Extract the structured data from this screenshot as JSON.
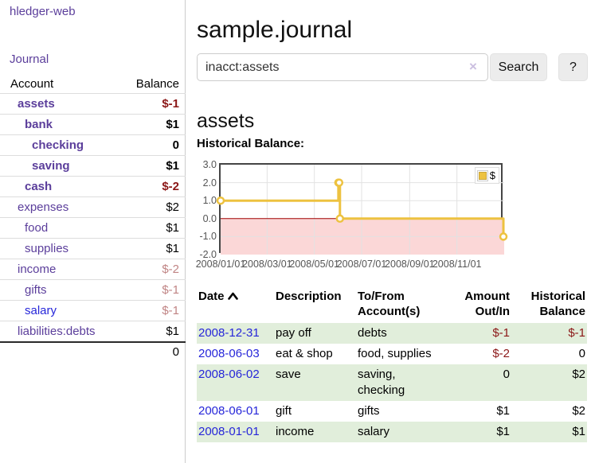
{
  "app": {
    "brand": "hledger-web",
    "nav_journal": "Journal"
  },
  "theme": {
    "link_purple": "#5b3e9b",
    "link_blue": "#2626d9",
    "negative_strong": "#8b1717",
    "negative_muted": "#c08484",
    "row_green": "#e1eedb",
    "chart_line": "#EDC240",
    "chart_negative_fill": "#fbd7d7",
    "chart_zero_line": "#a00000"
  },
  "sidebar": {
    "headers": {
      "account": "Account",
      "balance": "Balance"
    },
    "accounts": [
      {
        "name": "assets",
        "level": 1,
        "balance": "$-1",
        "in_current_account": true,
        "negative": "strong"
      },
      {
        "name": "bank",
        "level": 2,
        "balance": "$1",
        "in_current_account": true,
        "negative": null
      },
      {
        "name": "checking",
        "level": 3,
        "balance": "0",
        "in_current_account": true,
        "negative": null
      },
      {
        "name": "saving",
        "level": 3,
        "balance": "$1",
        "in_current_account": true,
        "negative": null
      },
      {
        "name": "cash",
        "level": 2,
        "balance": "$-2",
        "in_current_account": true,
        "negative": "strong"
      },
      {
        "name": "expenses",
        "level": 1,
        "balance": "$2",
        "in_current_account": false,
        "negative": null
      },
      {
        "name": "food",
        "level": 2,
        "balance": "$1",
        "in_current_account": false,
        "negative": null
      },
      {
        "name": "supplies",
        "level": 2,
        "balance": "$1",
        "in_current_account": false,
        "negative": null
      },
      {
        "name": "income",
        "level": 1,
        "balance": "$-2",
        "in_current_account": false,
        "negative": "muted"
      },
      {
        "name": "gifts",
        "level": 2,
        "balance": "$-1",
        "in_current_account": false,
        "negative": "muted"
      },
      {
        "name": "salary",
        "level": 2,
        "balance": "$-1",
        "in_current_account": false,
        "negative": "muted",
        "link_color": "blue"
      },
      {
        "name": "liabilities:debts",
        "level": 1,
        "balance": "$1",
        "in_current_account": false,
        "negative": null
      }
    ],
    "total": "0"
  },
  "main": {
    "title": "sample.journal",
    "search": {
      "value": "inacct:assets",
      "clear_icon": "×",
      "button_label": "Search",
      "help_label": "?"
    },
    "account_heading": "assets"
  },
  "chart_data": {
    "type": "line",
    "title": "Historical Balance:",
    "step": true,
    "series": [
      {
        "name": "$",
        "color": "#EDC240",
        "points": [
          {
            "date": "2008-01-01",
            "value": 1
          },
          {
            "date": "2008-06-01",
            "value": 2
          },
          {
            "date": "2008-06-02",
            "value": 2
          },
          {
            "date": "2008-06-03",
            "value": 0
          },
          {
            "date": "2008-12-31",
            "value": -1
          }
        ]
      }
    ],
    "xlim": [
      "2008-01-01",
      "2009-01-01"
    ],
    "ylim": [
      -2,
      3
    ],
    "x_ticks": [
      "2008/01/01",
      "2008/03/01",
      "2008/05/01",
      "2008/07/01",
      "2008/09/01",
      "2008/11/01"
    ],
    "y_ticks": [
      "3.0",
      "2.0",
      "1.0",
      "0.0",
      "-1.0",
      "-2.0"
    ],
    "grid": true,
    "legend_position": "top-right",
    "negative_fill": "#fbd7d7",
    "zero_line_color": "#a00000"
  },
  "register": {
    "headers": {
      "date": "Date",
      "description": "Description",
      "tofrom": "To/From Account(s)",
      "amount": "Amount Out/In",
      "balance": "Historical Balance"
    },
    "sort": {
      "column": "date",
      "icon": "chevron-up"
    },
    "transactions": [
      {
        "date": "2008-12-31",
        "description": "pay off",
        "accounts": "debts",
        "amount": "$-1",
        "amount_negative": true,
        "balance": "$-1",
        "balance_negative": true
      },
      {
        "date": "2008-06-03",
        "description": "eat & shop",
        "accounts": "food, supplies",
        "amount": "$-2",
        "amount_negative": true,
        "balance": "0",
        "balance_negative": false
      },
      {
        "date": "2008-06-02",
        "description": "save",
        "accounts": "saving, checking",
        "amount": "0",
        "amount_negative": false,
        "balance": "$2",
        "balance_negative": false
      },
      {
        "date": "2008-06-01",
        "description": "gift",
        "accounts": "gifts",
        "amount": "$1",
        "amount_negative": false,
        "balance": "$2",
        "balance_negative": false
      },
      {
        "date": "2008-01-01",
        "description": "income",
        "accounts": "salary",
        "amount": "$1",
        "amount_negative": false,
        "balance": "$1",
        "balance_negative": false
      }
    ]
  }
}
